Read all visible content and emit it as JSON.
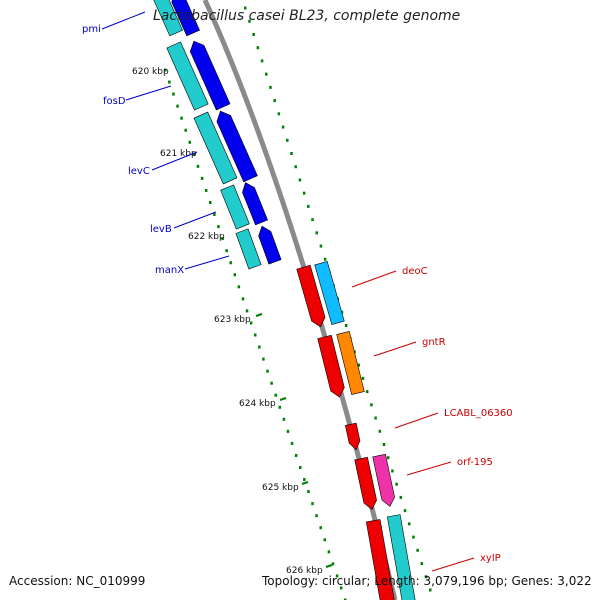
{
  "title": "Lactobacillus casei BL23, complete genome",
  "accession_text": "Accession: NC_010999",
  "topology_text": "Topology: circular; Length: 3,079,196 bp; Genes: 3,022",
  "colors": {
    "backbone": "#8a8a8a",
    "tick": "#008000",
    "left_label": "#0000cc",
    "right_label": "#cc0000",
    "blue_gene": "#0000ee",
    "cyan_gene": "#22cccc",
    "red_gene": "#ee0000",
    "sky_gene": "#11bbff",
    "orange_gene": "#ff8800",
    "pink_gene": "#ee33aa"
  },
  "kbp_ticks": [
    "620 kbp",
    "621 kbp",
    "622 kbp",
    "623 kbp",
    "624 kbp",
    "625 kbp",
    "626 kbp"
  ],
  "left_genes": [
    "pmi",
    "fosD",
    "levC",
    "levB",
    "manX"
  ],
  "right_genes": [
    "deoC",
    "gntR",
    "LCABL_06360",
    "orf-195",
    "xylP"
  ]
}
